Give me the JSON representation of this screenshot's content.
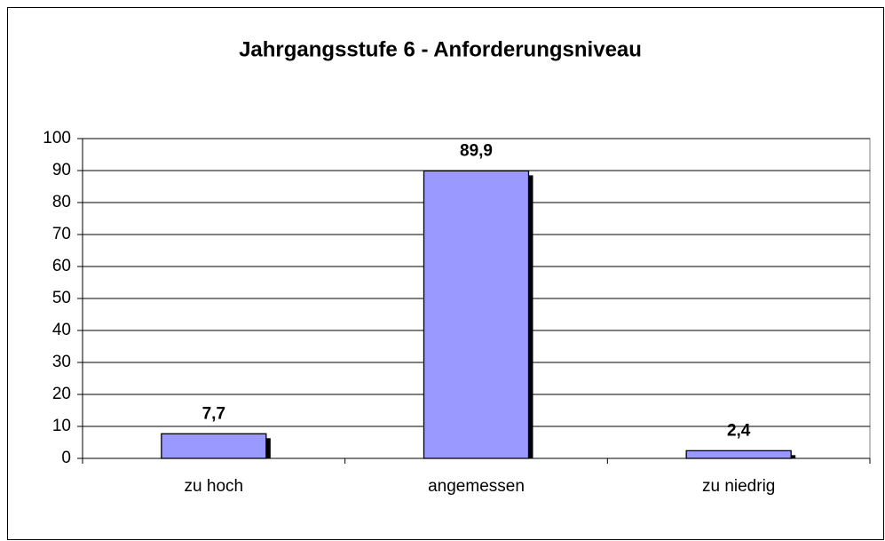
{
  "chart_data": {
    "type": "bar",
    "title": "Jahrgangsstufe  6 - Anforderungsniveau",
    "categories": [
      "zu hoch",
      "angemessen",
      "zu niedrig"
    ],
    "values": [
      7.7,
      89.9,
      2.4
    ],
    "value_labels": [
      "7,7",
      "89,9",
      "2,4"
    ],
    "color": "#9999ff",
    "ylim": [
      0,
      100
    ],
    "yticks": [
      0,
      10,
      20,
      30,
      40,
      50,
      60,
      70,
      80,
      90,
      100
    ],
    "grid": true
  }
}
